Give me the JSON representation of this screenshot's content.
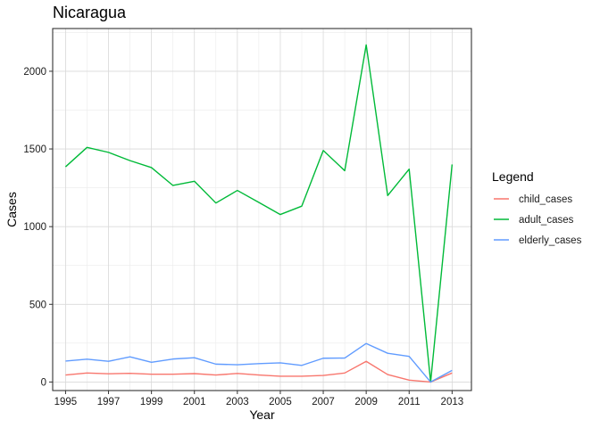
{
  "chart_data": {
    "type": "line",
    "title": "Nicaragua",
    "xlabel": "Year",
    "ylabel": "Cases",
    "x": [
      1995,
      1996,
      1997,
      1998,
      1999,
      2000,
      2001,
      2002,
      2003,
      2004,
      2005,
      2006,
      2007,
      2008,
      2009,
      2010,
      2011,
      2012,
      2013
    ],
    "x_ticks": [
      1995,
      1997,
      1999,
      2001,
      2003,
      2005,
      2007,
      2009,
      2011,
      2013
    ],
    "x_tick_labels": [
      "1995",
      "1997",
      "1999",
      "2001",
      "2003",
      "2005",
      "2007",
      "2009",
      "2011",
      "2013"
    ],
    "y_ticks": [
      0,
      500,
      1000,
      1500,
      2000
    ],
    "y_tick_labels": [
      "0",
      "500",
      "1000",
      "1500",
      "2000"
    ],
    "xlim": [
      1994.4,
      2013.9
    ],
    "ylim": [
      -55,
      2275
    ],
    "grid": true,
    "legend": {
      "title": "Legend",
      "position": "right"
    },
    "series": [
      {
        "name": "child_cases",
        "color": "#F8766D",
        "values": [
          45,
          58,
          53,
          56,
          50,
          50,
          54,
          45,
          55,
          45,
          37,
          37,
          42,
          58,
          133,
          48,
          12,
          0,
          58
        ]
      },
      {
        "name": "adult_cases",
        "color": "#00BA38",
        "values": [
          1385,
          1510,
          1478,
          1425,
          1380,
          1265,
          1292,
          1152,
          1233,
          1156,
          1078,
          1132,
          1490,
          1360,
          2170,
          1200,
          1370,
          0,
          1400
        ]
      },
      {
        "name": "elderly_cases",
        "color": "#619CFF",
        "values": [
          135,
          147,
          133,
          162,
          127,
          148,
          156,
          115,
          111,
          118,
          123,
          107,
          153,
          154,
          248,
          185,
          165,
          0,
          75
        ]
      }
    ]
  }
}
